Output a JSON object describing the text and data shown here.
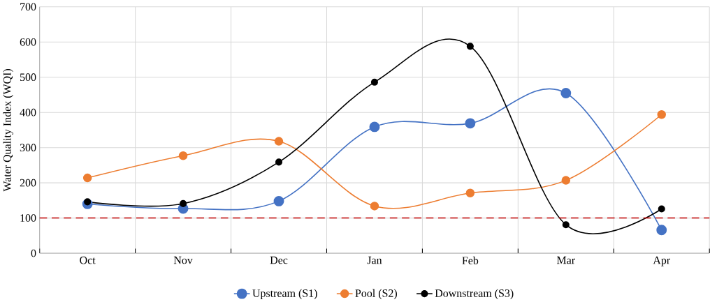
{
  "chart_data": {
    "type": "line",
    "ylabel": "Water Quality Index (WQI)",
    "categories": [
      "Oct",
      "Nov",
      "Dec",
      "Jan",
      "Feb",
      "Mar",
      "Apr"
    ],
    "series": [
      {
        "name": "Upstream (S1)",
        "color": "#4472c4",
        "values": [
          140,
          127,
          148,
          359,
          369,
          455,
          66
        ]
      },
      {
        "name": "Pool (S2)",
        "color": "#ed7d31",
        "values": [
          214,
          277,
          318,
          134,
          171,
          207,
          394
        ]
      },
      {
        "name": "Downstream (S3)",
        "color": "#000000",
        "values": [
          146,
          141,
          259,
          486,
          588,
          81,
          126
        ]
      }
    ],
    "ylim": [
      0,
      700
    ],
    "yticks": [
      0,
      100,
      200,
      300,
      400,
      500,
      600,
      700
    ],
    "ref_lines": [
      {
        "axis": "y",
        "value": 100,
        "color": "#c00000",
        "line_style": "dashed"
      }
    ],
    "grid": true,
    "legend": "bottom",
    "marker": "circle",
    "line_style": "solid"
  }
}
